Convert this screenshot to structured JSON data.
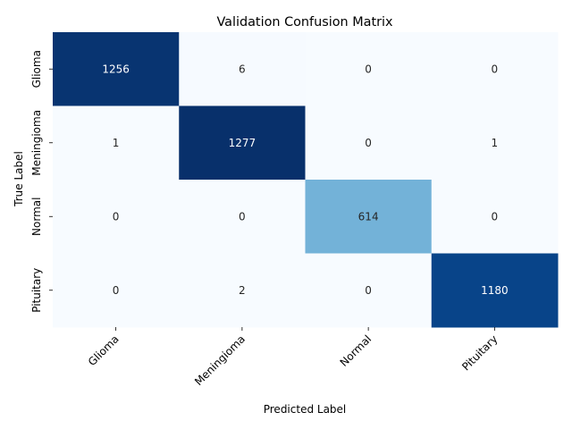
{
  "chart_data": {
    "type": "heatmap",
    "title": "Validation Confusion Matrix",
    "xlabel": "Predicted Label",
    "ylabel": "True Label",
    "x_categories": [
      "Glioma",
      "Meningioma",
      "Normal",
      "Pituitary"
    ],
    "y_categories": [
      "Glioma",
      "Meningioma",
      "Normal",
      "Pituitary"
    ],
    "values": [
      [
        1256,
        6,
        0,
        0
      ],
      [
        1,
        1277,
        0,
        1
      ],
      [
        0,
        0,
        614,
        0
      ],
      [
        0,
        2,
        0,
        1180
      ]
    ],
    "colormap": "Blues",
    "color_low": "#f7fbff",
    "color_high": "#08306b",
    "text_dark": "#262626",
    "text_light": "#ffffff",
    "colorbar": false,
    "grid": false,
    "legend": "none"
  }
}
